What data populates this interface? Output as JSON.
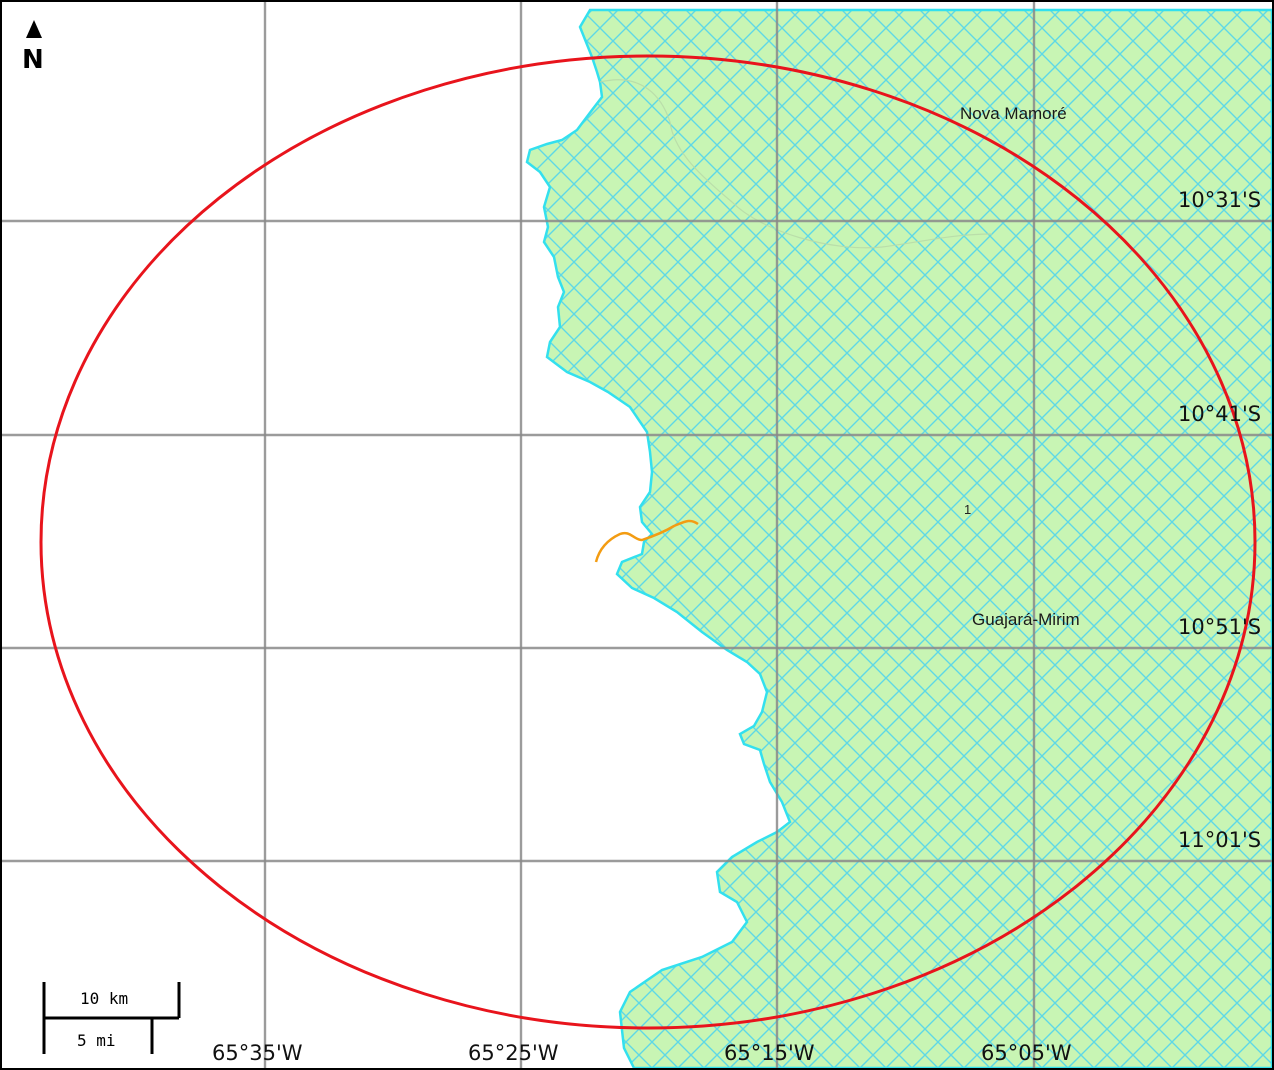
{
  "map": {
    "north_arrow": {
      "letter": "N",
      "icon": "north-arrow-icon"
    },
    "scale_bar": {
      "metric_label": "10 km",
      "imperial_label": "5 mi"
    },
    "longitude_labels": [
      "65°35'W",
      "65°25'W",
      "65°15'W",
      "65°05'W"
    ],
    "latitude_labels": [
      "10°31'S",
      "10°41'S",
      "10°51'S",
      "11°01'S"
    ],
    "places": [
      {
        "name": "Nova Mamoré"
      },
      {
        "name": "Guajará-Mirim"
      }
    ],
    "feature_label": "1",
    "colors": {
      "land_fill": "#c8f5b4",
      "hatch": "#5ed8e6",
      "border": "#33e0ee",
      "radius_ellipse": "#e8141c",
      "river": "#f39c12",
      "grid": "#8a8a8a",
      "background": "#ffffff"
    }
  }
}
